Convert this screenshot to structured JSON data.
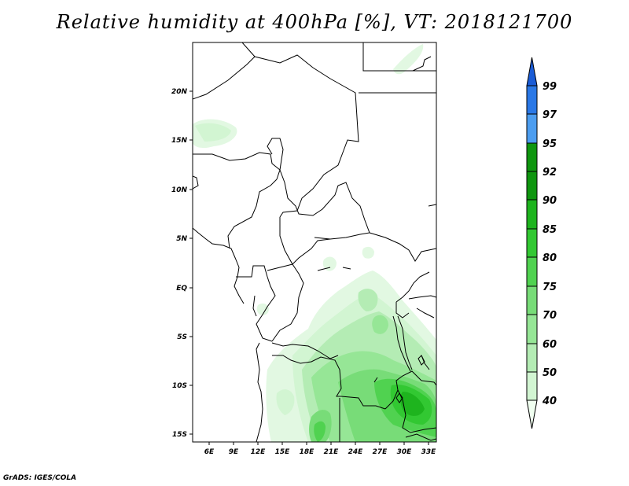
{
  "title": "Relative humidity at 400hPa [%], VT: 2018121700",
  "credit": "GrADS: IGES/COLA",
  "map": {
    "lon_range": [
      4,
      34
    ],
    "lat_range": [
      -16,
      25
    ],
    "lon_ticks": [
      "6E",
      "9E",
      "12E",
      "15E",
      "18E",
      "21E",
      "24E",
      "27E",
      "30E",
      "33E"
    ],
    "lat_ticks": [
      "20N",
      "15N",
      "10N",
      "5N",
      "EQ",
      "5S",
      "10S",
      "15S"
    ]
  },
  "colorbar": {
    "levels": [
      "40",
      "50",
      "60",
      "70",
      "75",
      "80",
      "85",
      "90",
      "92",
      "95",
      "97",
      "99"
    ],
    "colors": [
      "#f0fff0",
      "#d2f5d2",
      "#b4ecb4",
      "#96e696",
      "#78dc78",
      "#50d250",
      "#32c832",
      "#1eb41e",
      "#0f960f",
      "#4c9df0",
      "#2a78e6",
      "#1a5cd6"
    ]
  }
}
